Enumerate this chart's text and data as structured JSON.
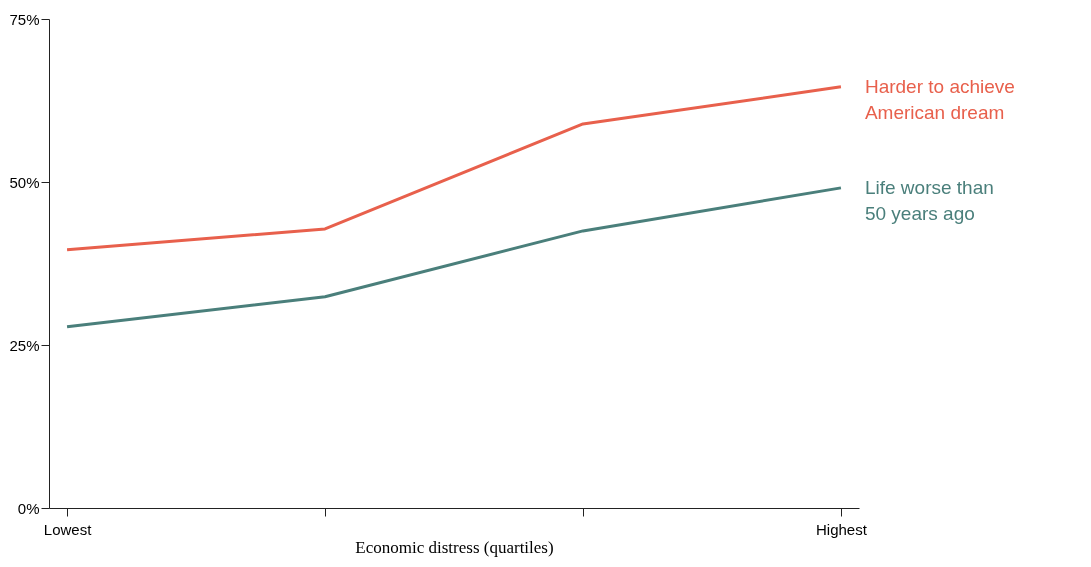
{
  "chart_data": {
    "type": "line",
    "xlabel": "Economic distress (quartiles)",
    "categories": [
      "Lowest",
      null,
      null,
      "Highest"
    ],
    "series": [
      {
        "name": "Harder to achieve American dream",
        "color": "#e8604c",
        "values": [
          39.6,
          42.8,
          58.9,
          64.6
        ]
      },
      {
        "name": "Life worse than 50 years ago",
        "color": "#4a7f7b",
        "values": [
          27.8,
          32.4,
          42.5,
          49.1
        ]
      }
    ],
    "ylim": [
      0,
      75
    ],
    "yticks": [
      {
        "value": 0,
        "label": "0%"
      },
      {
        "value": 25,
        "label": "25%"
      },
      {
        "value": 50,
        "label": "50%"
      },
      {
        "value": 75,
        "label": "75%"
      }
    ],
    "grid": false,
    "legend": false,
    "marker": "none",
    "line_style": "solid"
  }
}
